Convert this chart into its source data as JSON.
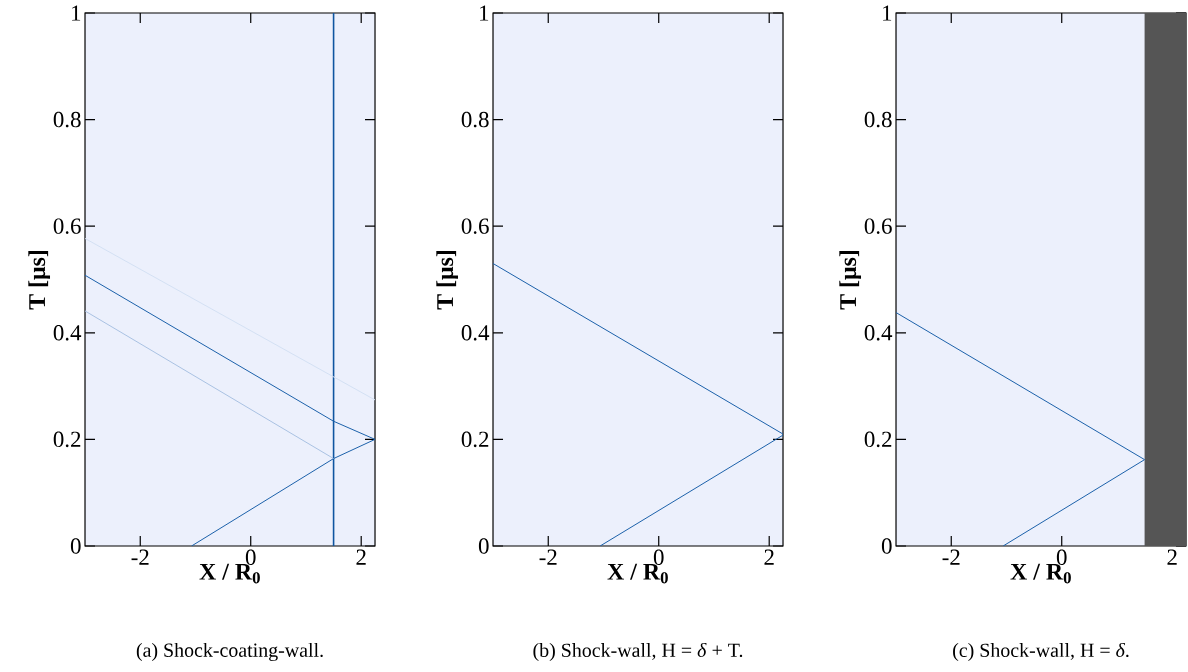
{
  "chart_data": [
    {
      "type": "line",
      "xlabel": "X / R$_{0}$",
      "ylabel": "T [μs]",
      "xlim": [
        -3,
        2.25
      ],
      "ylim": [
        0,
        1
      ],
      "xticks": [
        -2,
        0,
        2
      ],
      "yticks": [
        0,
        0.2,
        0.4,
        0.6,
        0.8,
        1
      ],
      "series": [
        {
          "color": "#1b60aa",
          "x": [
            -1.07,
            1.5,
            2.25
          ],
          "values": [
            0,
            0.164,
            0.2
          ]
        },
        {
          "color": "#0f55a0",
          "x": [
            1.5,
            1.5
          ],
          "values": [
            0,
            1
          ]
        },
        {
          "color": "#1b60aa",
          "x": [
            2.25,
            1.5,
            -3
          ],
          "values": [
            0.2,
            0.234,
            0.508
          ]
        },
        {
          "color": "#a9c1e2",
          "x": [
            1.5,
            -3
          ],
          "values": [
            0.164,
            0.441
          ]
        },
        {
          "color": "#d3e0f3",
          "x": [
            2.25,
            -3
          ],
          "values": [
            0.274,
            0.577
          ]
        }
      ],
      "annotations": [
        "(a) Shock-coating-wall."
      ]
    },
    {
      "type": "line",
      "xlabel": "X / R$_{0}$",
      "ylabel": "T [μs]",
      "xlim": [
        -3,
        2.25
      ],
      "ylim": [
        0,
        1
      ],
      "xticks": [
        -2,
        0,
        2
      ],
      "yticks": [
        0,
        0.2,
        0.4,
        0.6,
        0.8,
        1
      ],
      "series": [
        {
          "color": "#1b60aa",
          "x": [
            -1.06,
            2.25
          ],
          "values": [
            0,
            0.208
          ]
        },
        {
          "color": "#1b60aa",
          "x": [
            2.25,
            -3
          ],
          "values": [
            0.21,
            0.53
          ]
        }
      ],
      "annotations": [
        "(b) Shock-wall, H = *δ* + T."
      ]
    },
    {
      "type": "line",
      "xlabel": "X / R$_{0}$",
      "ylabel": "T [μs]",
      "xlim": [
        -3,
        2.25
      ],
      "ylim": [
        0,
        1
      ],
      "xticks": [
        -2,
        0,
        2
      ],
      "yticks": [
        0,
        0.2,
        0.4,
        0.6,
        0.8,
        1
      ],
      "series": [
        {
          "color": "#1b60aa",
          "x": [
            -1.06,
            1.5
          ],
          "values": [
            0,
            0.162
          ]
        },
        {
          "color": "#1b60aa",
          "x": [
            1.5,
            -3
          ],
          "values": [
            0.162,
            0.438
          ]
        }
      ],
      "bands": [
        {
          "axis": "x",
          "from": 1.5,
          "to": 2.25,
          "color": "#555555"
        }
      ],
      "annotations": [
        "(c) Shock-wall, H = *δ*."
      ]
    }
  ]
}
